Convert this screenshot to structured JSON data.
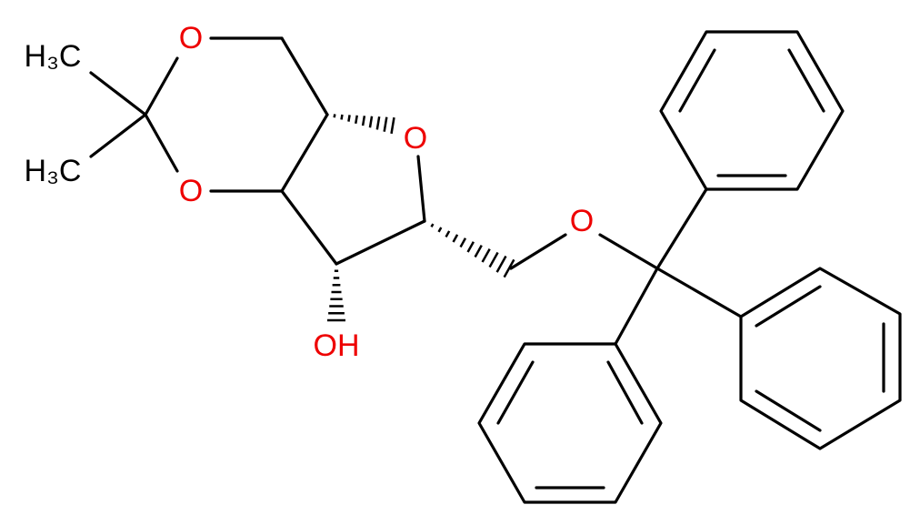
{
  "atoms": [
    {
      "label": "O"
    },
    {
      "label": "O"
    },
    {
      "label": "O"
    },
    {
      "label": "OH"
    },
    {
      "label": "O"
    },
    {
      "label": "H₃C"
    },
    {
      "label": "H₃C"
    }
  ]
}
